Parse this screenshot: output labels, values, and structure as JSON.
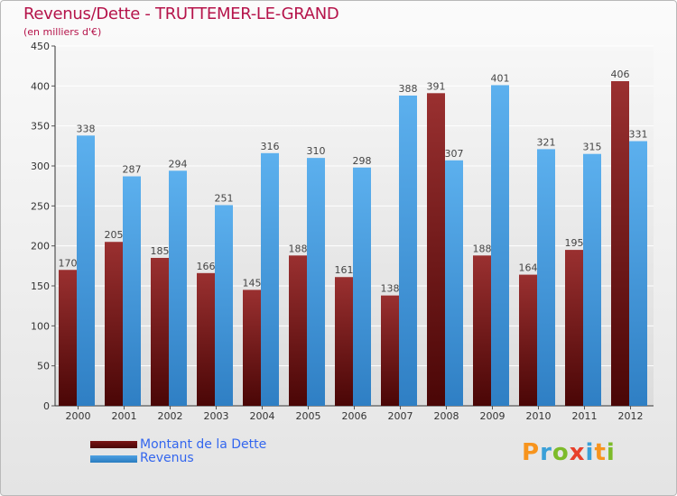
{
  "title": "Revenus/Dette - TRUTTEMER-LE-GRAND",
  "subtitle": "(en milliers d'€)",
  "colors": {
    "dette": "#7a1414",
    "revenus": "#4ea1e3",
    "title": "#b5134a",
    "legend_text": "#3366ee"
  },
  "legend": {
    "dette_label": "Montant de la Dette",
    "revenus_label": "Revenus"
  },
  "logo": {
    "p": "P",
    "r": "r",
    "o": "o",
    "x": "x",
    "i1": "i",
    "t": "t",
    "i2": "i"
  },
  "chart_data": {
    "type": "bar",
    "title": "Revenus/Dette - TRUTTEMER-LE-GRAND",
    "ylabel": "(en milliers d'€)",
    "xlabel": "",
    "categories": [
      "2000",
      "2001",
      "2002",
      "2003",
      "2004",
      "2005",
      "2006",
      "2007",
      "2008",
      "2009",
      "2010",
      "2011",
      "2012"
    ],
    "series": [
      {
        "name": "Montant de la Dette",
        "values": [
          170,
          205,
          185,
          166,
          145,
          188,
          161,
          138,
          391,
          188,
          164,
          195,
          406
        ]
      },
      {
        "name": "Revenus",
        "values": [
          338,
          287,
          294,
          251,
          316,
          310,
          298,
          388,
          307,
          401,
          321,
          315,
          331
        ]
      }
    ],
    "ylim": [
      0,
      450
    ],
    "yticks": [
      0,
      50,
      100,
      150,
      200,
      250,
      300,
      350,
      400,
      450
    ],
    "grid": true,
    "legend_position": "bottom-left"
  }
}
